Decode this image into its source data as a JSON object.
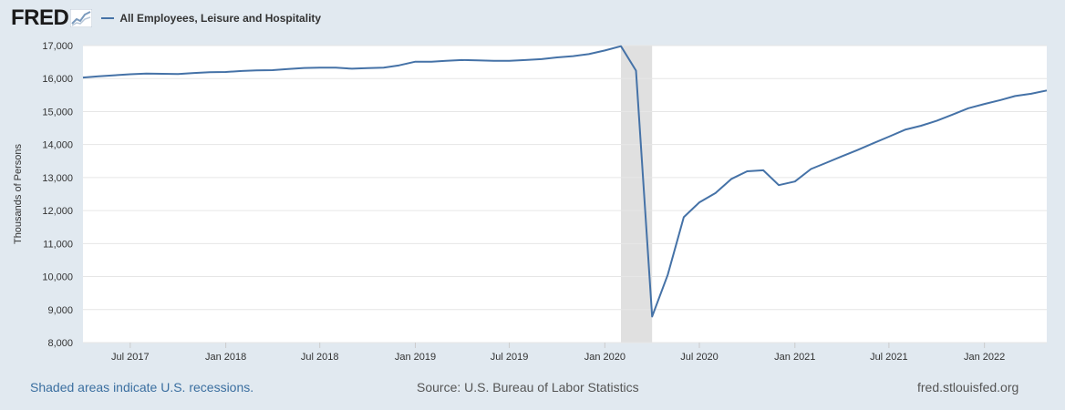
{
  "header": {
    "logo_text": "FRED",
    "logo_icon": "trend-line-icon",
    "series_label": "All Employees, Leisure and Hospitality",
    "series_color": "#4572a7"
  },
  "footer": {
    "recession_note": "Shaded areas indicate U.S. recessions.",
    "source": "Source: U.S. Bureau of Labor Statistics",
    "site": "fred.stlouisfed.org"
  },
  "chart_data": {
    "type": "line",
    "title": "",
    "xlabel": "",
    "ylabel": "Thousands of Persons",
    "ylim": [
      8000,
      17000
    ],
    "xlim": [
      "2017-04-01",
      "2022-05-01"
    ],
    "y_ticks": [
      "8,000",
      "9,000",
      "10,000",
      "11,000",
      "12,000",
      "13,000",
      "14,000",
      "15,000",
      "16,000",
      "17,000"
    ],
    "y_tick_values": [
      8000,
      9000,
      10000,
      11000,
      12000,
      13000,
      14000,
      15000,
      16000,
      17000
    ],
    "x_ticks": [
      "Jul 2017",
      "Jan 2018",
      "Jul 2018",
      "Jan 2019",
      "Jul 2019",
      "Jan 2020",
      "Jul 2020",
      "Jan 2021",
      "Jul 2021",
      "Jan 2022"
    ],
    "x_tick_values": [
      "2017-07-01",
      "2018-01-01",
      "2018-07-01",
      "2019-01-01",
      "2019-07-01",
      "2020-01-01",
      "2020-07-01",
      "2021-01-01",
      "2021-07-01",
      "2022-01-01"
    ],
    "grid": true,
    "recessions": [
      {
        "start": "2020-02-01",
        "end": "2020-04-01"
      }
    ],
    "series": [
      {
        "color": "#4572a7",
        "x": [
          "2017-04-01",
          "2017-05-01",
          "2017-06-01",
          "2017-07-01",
          "2017-08-01",
          "2017-09-01",
          "2017-10-01",
          "2017-11-01",
          "2017-12-01",
          "2018-01-01",
          "2018-02-01",
          "2018-03-01",
          "2018-04-01",
          "2018-05-01",
          "2018-06-01",
          "2018-07-01",
          "2018-08-01",
          "2018-09-01",
          "2018-10-01",
          "2018-11-01",
          "2018-12-01",
          "2019-01-01",
          "2019-02-01",
          "2019-03-01",
          "2019-04-01",
          "2019-05-01",
          "2019-06-01",
          "2019-07-01",
          "2019-08-01",
          "2019-09-01",
          "2019-10-01",
          "2019-11-01",
          "2019-12-01",
          "2020-01-01",
          "2020-02-01",
          "2020-03-01",
          "2020-04-01",
          "2020-05-01",
          "2020-06-01",
          "2020-07-01",
          "2020-08-01",
          "2020-09-01",
          "2020-10-01",
          "2020-11-01",
          "2020-12-01",
          "2021-01-01",
          "2021-02-01",
          "2021-03-01",
          "2021-04-01",
          "2021-05-01",
          "2021-06-01",
          "2021-07-01",
          "2021-08-01",
          "2021-09-01",
          "2021-10-01",
          "2021-11-01",
          "2021-12-01",
          "2022-01-01",
          "2022-02-01",
          "2022-03-01",
          "2022-04-01",
          "2022-05-01"
        ],
        "values": [
          16030,
          16070,
          16100,
          16130,
          16150,
          16145,
          16140,
          16170,
          16190,
          16200,
          16230,
          16250,
          16255,
          16290,
          16320,
          16330,
          16330,
          16300,
          16315,
          16330,
          16400,
          16510,
          16510,
          16540,
          16560,
          16550,
          16540,
          16540,
          16560,
          16590,
          16640,
          16680,
          16740,
          16850,
          16980,
          16240,
          8790,
          10050,
          11800,
          12250,
          12530,
          12960,
          13190,
          13220,
          12770,
          12880,
          13260,
          13440,
          13640,
          13830,
          14040,
          14240,
          14450,
          14570,
          14720,
          14910,
          15100,
          15230,
          15350,
          15470,
          15540,
          15640
        ]
      }
    ]
  }
}
